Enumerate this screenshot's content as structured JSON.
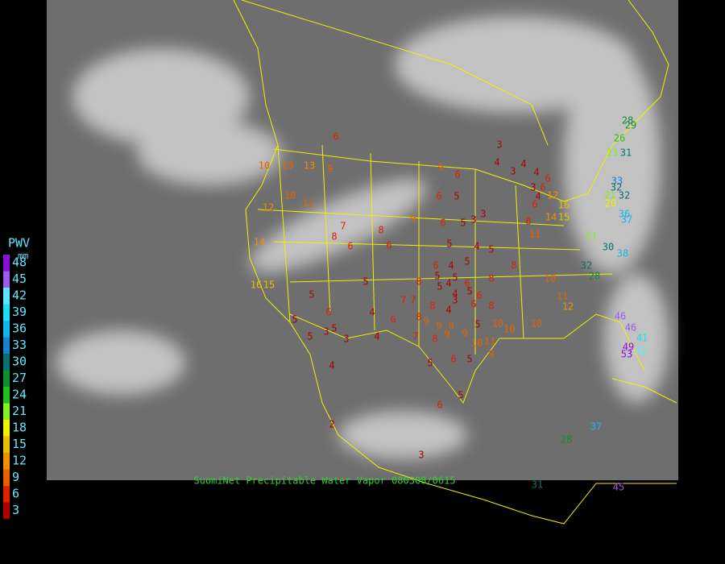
{
  "title": "SuomiNet Precipitable Water Vapor 080308/0615",
  "legend": {
    "title": "PWV",
    "unit": "mm",
    "levels": [
      {
        "value": 48,
        "color": "#8a10d8"
      },
      {
        "value": 45,
        "color": "#9a5cf0"
      },
      {
        "value": 42,
        "color": "#5ae6ff"
      },
      {
        "value": 39,
        "color": "#18e0f0"
      },
      {
        "value": 36,
        "color": "#10b8f0"
      },
      {
        "value": 33,
        "color": "#1a80d0"
      },
      {
        "value": 30,
        "color": "#0a7070"
      },
      {
        "value": 27,
        "color": "#109030"
      },
      {
        "value": 24,
        "color": "#20c020"
      },
      {
        "value": 21,
        "color": "#80f020"
      },
      {
        "value": 18,
        "color": "#f0f000"
      },
      {
        "value": 15,
        "color": "#e8c000"
      },
      {
        "value": 12,
        "color": "#f09000"
      },
      {
        "value": 9,
        "color": "#e86000"
      },
      {
        "value": 6,
        "color": "#e02000"
      },
      {
        "value": 3,
        "color": "#b00000"
      }
    ]
  },
  "stations": {
    "values": [
      6,
      10,
      13,
      9,
      10,
      10,
      11,
      12,
      14,
      16,
      15,
      7,
      8,
      6,
      8,
      6,
      9,
      9,
      6,
      6,
      5,
      6,
      5,
      3,
      3,
      3,
      4,
      3,
      4,
      4,
      6,
      3,
      4,
      6,
      12,
      6,
      8,
      11,
      16,
      14,
      15,
      5,
      4,
      5,
      6,
      4,
      5,
      5,
      5,
      6,
      8,
      8,
      5,
      5,
      8,
      5,
      4,
      4,
      5,
      6,
      3,
      4,
      7,
      7,
      8,
      6,
      8,
      4,
      6,
      8,
      9,
      9,
      9,
      5,
      10,
      10,
      10,
      10,
      11,
      12,
      6,
      5,
      5,
      3,
      5,
      3,
      4,
      7,
      8,
      9,
      9,
      10,
      11,
      5,
      6,
      5,
      9,
      4,
      6,
      5,
      2,
      3,
      29,
      28,
      26,
      23,
      31,
      33,
      32,
      21,
      32,
      20,
      36,
      37,
      23,
      30,
      38,
      32,
      28,
      46,
      46,
      41,
      49,
      53,
      42,
      37,
      28,
      31,
      45
    ]
  }
}
